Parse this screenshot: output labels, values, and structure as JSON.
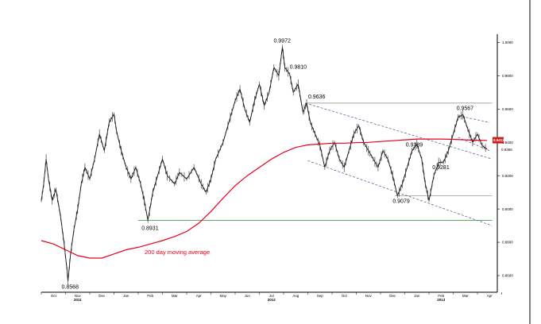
{
  "chart_data": {
    "type": "line",
    "title": "",
    "xlabel": "",
    "ylabel": "",
    "ylim": [
      0.85,
      1.005
    ],
    "y_ticks": [
      {
        "value": 0.86,
        "label": "0.8600"
      },
      {
        "value": 0.88,
        "label": "0.8800"
      },
      {
        "value": 0.9,
        "label": "0.9000"
      },
      {
        "value": 0.92,
        "label": "0.9200"
      },
      {
        "value": 0.94,
        "label": "0.9400"
      },
      {
        "value": 0.96,
        "label": "0.9600"
      },
      {
        "value": 0.98,
        "label": "0.9800"
      },
      {
        "value": 1.0,
        "label": "1.0000"
      }
    ],
    "x_months": [
      {
        "t": 0.5,
        "label": "Oct"
      },
      {
        "t": 1.5,
        "label": "Nov"
      },
      {
        "t": 2.5,
        "label": "Dec"
      },
      {
        "t": 3.5,
        "label": "Jan"
      },
      {
        "t": 4.5,
        "label": "Feb"
      },
      {
        "t": 5.5,
        "label": "Mar"
      },
      {
        "t": 6.5,
        "label": "Apr"
      },
      {
        "t": 7.5,
        "label": "May"
      },
      {
        "t": 8.5,
        "label": "Jun"
      },
      {
        "t": 9.5,
        "label": "Jul"
      },
      {
        "t": 10.5,
        "label": "Aug"
      },
      {
        "t": 11.5,
        "label": "Sep"
      },
      {
        "t": 12.5,
        "label": "Oct"
      },
      {
        "t": 13.5,
        "label": "Nov"
      },
      {
        "t": 14.5,
        "label": "Dec"
      },
      {
        "t": 15.5,
        "label": "Jan"
      },
      {
        "t": 16.5,
        "label": "Feb"
      },
      {
        "t": 17.5,
        "label": "Mar"
      },
      {
        "t": 18.5,
        "label": "Apr"
      }
    ],
    "x_years": [
      {
        "t": 1.5,
        "label": "2011"
      },
      {
        "t": 9.5,
        "label": "2012"
      },
      {
        "t": 16.5,
        "label": "2013"
      }
    ],
    "price_series": {
      "name": "",
      "color": "#000000",
      "points": [
        [
          0.0,
          0.905
        ],
        [
          0.1,
          0.915
        ],
        [
          0.2,
          0.93
        ],
        [
          0.3,
          0.918
        ],
        [
          0.45,
          0.905
        ],
        [
          0.6,
          0.912
        ],
        [
          0.8,
          0.895
        ],
        [
          0.95,
          0.878
        ],
        [
          1.05,
          0.865
        ],
        [
          1.1,
          0.8568
        ],
        [
          1.2,
          0.872
        ],
        [
          1.35,
          0.888
        ],
        [
          1.5,
          0.9
        ],
        [
          1.65,
          0.915
        ],
        [
          1.8,
          0.925
        ],
        [
          2.0,
          0.918
        ],
        [
          2.2,
          0.93
        ],
        [
          2.4,
          0.945
        ],
        [
          2.6,
          0.935
        ],
        [
          2.8,
          0.952
        ],
        [
          3.0,
          0.957
        ],
        [
          3.1,
          0.947
        ],
        [
          3.3,
          0.935
        ],
        [
          3.5,
          0.925
        ],
        [
          3.7,
          0.918
        ],
        [
          3.9,
          0.925
        ],
        [
          4.1,
          0.915
        ],
        [
          4.25,
          0.905
        ],
        [
          4.4,
          0.8931
        ],
        [
          4.6,
          0.91
        ],
        [
          4.8,
          0.92
        ],
        [
          5.0,
          0.93
        ],
        [
          5.2,
          0.92
        ],
        [
          5.5,
          0.915
        ],
        [
          5.7,
          0.922
        ],
        [
          6.0,
          0.918
        ],
        [
          6.3,
          0.925
        ],
        [
          6.6,
          0.915
        ],
        [
          6.8,
          0.91
        ],
        [
          7.0,
          0.918
        ],
        [
          7.2,
          0.93
        ],
        [
          7.5,
          0.94
        ],
        [
          7.8,
          0.955
        ],
        [
          8.0,
          0.965
        ],
        [
          8.2,
          0.972
        ],
        [
          8.4,
          0.96
        ],
        [
          8.6,
          0.952
        ],
        [
          8.8,
          0.965
        ],
        [
          9.0,
          0.975
        ],
        [
          9.2,
          0.962
        ],
        [
          9.4,
          0.97
        ],
        [
          9.6,
          0.985
        ],
        [
          9.8,
          0.98
        ],
        [
          9.95,
          0.9972
        ],
        [
          10.05,
          0.985
        ],
        [
          10.25,
          0.981
        ],
        [
          10.4,
          0.97
        ],
        [
          10.6,
          0.975
        ],
        [
          10.8,
          0.958
        ],
        [
          10.95,
          0.9636
        ],
        [
          11.1,
          0.952
        ],
        [
          11.3,
          0.945
        ],
        [
          11.5,
          0.938
        ],
        [
          11.7,
          0.925
        ],
        [
          11.9,
          0.935
        ],
        [
          12.1,
          0.94
        ],
        [
          12.3,
          0.93
        ],
        [
          12.5,
          0.925
        ],
        [
          12.7,
          0.935
        ],
        [
          12.9,
          0.945
        ],
        [
          13.1,
          0.95
        ],
        [
          13.3,
          0.94
        ],
        [
          13.5,
          0.935
        ],
        [
          13.7,
          0.93
        ],
        [
          13.9,
          0.925
        ],
        [
          14.1,
          0.935
        ],
        [
          14.3,
          0.93
        ],
        [
          14.5,
          0.92
        ],
        [
          14.7,
          0.9079
        ],
        [
          14.9,
          0.915
        ],
        [
          15.1,
          0.925
        ],
        [
          15.3,
          0.935
        ],
        [
          15.5,
          0.9389
        ],
        [
          15.7,
          0.93
        ],
        [
          15.85,
          0.915
        ],
        [
          16.0,
          0.905
        ],
        [
          16.2,
          0.92
        ],
        [
          16.4,
          0.928
        ],
        [
          16.6,
          0.9281
        ],
        [
          16.8,
          0.935
        ],
        [
          17.0,
          0.945
        ],
        [
          17.2,
          0.955
        ],
        [
          17.4,
          0.9567
        ],
        [
          17.6,
          0.948
        ],
        [
          17.8,
          0.94
        ],
        [
          18.0,
          0.945
        ],
        [
          18.2,
          0.938
        ],
        [
          18.4,
          0.936
        ]
      ]
    },
    "moving_average": {
      "name": "200 day moving average",
      "color": "#e8001c",
      "points": [
        [
          0.0,
          0.881
        ],
        [
          0.5,
          0.879
        ],
        [
          1.0,
          0.8755
        ],
        [
          1.5,
          0.872
        ],
        [
          2.0,
          0.8705
        ],
        [
          2.5,
          0.8705
        ],
        [
          3.0,
          0.873
        ],
        [
          3.5,
          0.8755
        ],
        [
          4.0,
          0.877
        ],
        [
          4.5,
          0.879
        ],
        [
          5.0,
          0.881
        ],
        [
          5.5,
          0.8835
        ],
        [
          6.0,
          0.8865
        ],
        [
          6.5,
          0.8915
        ],
        [
          7.0,
          0.8985
        ],
        [
          7.5,
          0.9065
        ],
        [
          8.0,
          0.914
        ],
        [
          8.5,
          0.92
        ],
        [
          9.0,
          0.925
        ],
        [
          9.5,
          0.93
        ],
        [
          10.0,
          0.934
        ],
        [
          10.5,
          0.937
        ],
        [
          11.0,
          0.9385
        ],
        [
          11.5,
          0.939
        ],
        [
          12.0,
          0.9395
        ],
        [
          12.5,
          0.9395
        ],
        [
          13.0,
          0.9398
        ],
        [
          13.5,
          0.94
        ],
        [
          14.0,
          0.9405
        ],
        [
          14.5,
          0.941
        ],
        [
          15.0,
          0.9415
        ],
        [
          15.5,
          0.942
        ],
        [
          16.0,
          0.942
        ],
        [
          16.5,
          0.942
        ],
        [
          17.0,
          0.9418
        ],
        [
          17.5,
          0.9415
        ],
        [
          18.0,
          0.9413
        ],
        [
          18.4,
          0.9412
        ]
      ]
    },
    "last_price_tag": {
      "value": 0.9413,
      "label": "0.9413",
      "color": "#d11a1a"
    },
    "second_tag": {
      "value": 0.9356,
      "label": "0.9356"
    },
    "annotations": [
      {
        "label": "0.8568",
        "x": 1.1,
        "y": 0.8568
      },
      {
        "label": "0.8931",
        "x": 4.4,
        "y": 0.8931
      },
      {
        "label": "0.9972",
        "x": 9.95,
        "y": 0.9972
      },
      {
        "label": "0.9810",
        "x": 10.25,
        "y": 0.981
      },
      {
        "label": "0.9636",
        "x": 10.95,
        "y": 0.9636
      },
      {
        "label": "0.9567",
        "x": 17.4,
        "y": 0.9567
      },
      {
        "label": "0.9389",
        "x": 15.5,
        "y": 0.9389
      },
      {
        "label": "0.9281",
        "x": 16.6,
        "y": 0.9281
      },
      {
        "label": "0.9079",
        "x": 14.7,
        "y": 0.9079
      }
    ],
    "ma_label": {
      "text": "200 day moving average"
    },
    "reference_lines": [
      {
        "style": "solid-green",
        "color": "#2e8b2e",
        "y": 0.8931,
        "x_start": 4.0,
        "x_end": 18.6
      },
      {
        "style": "solid-grey",
        "color": "#9a9a9a",
        "y": 0.9636,
        "x_start": 10.9,
        "x_end": 18.6
      },
      {
        "style": "solid-grey",
        "color": "#9a9a9a",
        "y": 0.9079,
        "x_start": 14.6,
        "x_end": 18.6
      }
    ],
    "trend_lines": [
      {
        "color": "#4a5a8a",
        "from": [
          10.9,
          0.9636
        ],
        "to": [
          18.6,
          0.93
        ]
      },
      {
        "color": "#4a5a8a",
        "from": [
          11.0,
          0.929
        ],
        "to": [
          18.6,
          0.89
        ]
      },
      {
        "color": "#4a5a8a",
        "from": [
          17.2,
          0.956
        ],
        "to": [
          18.5,
          0.952
        ]
      },
      {
        "color": "#4a5a8a",
        "from": [
          17.2,
          0.943
        ],
        "to": [
          18.5,
          0.935
        ]
      }
    ],
    "grid": false,
    "legend": "none"
  }
}
